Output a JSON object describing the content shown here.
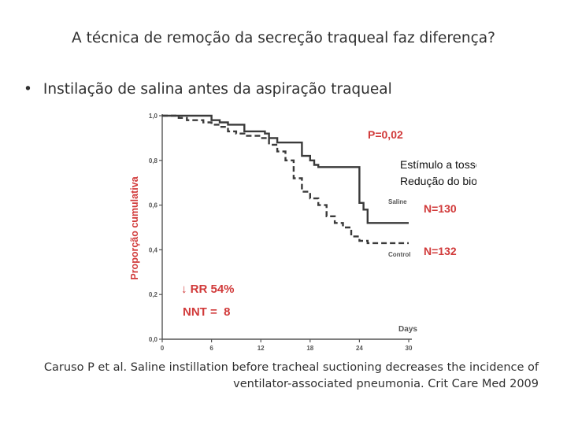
{
  "slide": {
    "title": "A técnica de remoção da secreção traqueal faz diferença?",
    "bullet": "Instilação de salina antes da aspiração traqueal",
    "citation_line1": "Caruso P et al. Saline instillation before tracheal suctioning decreases the incidence of",
    "citation_line2": "ventilator-associated pneumonia. Crit Care Med 2009"
  },
  "chart_data": {
    "type": "line",
    "title": "",
    "xlabel": "Days",
    "ylabel": "Proporção cumulativa",
    "xlim": [
      0,
      30
    ],
    "ylim": [
      0,
      1
    ],
    "x_ticks": [
      "0",
      "6",
      "12",
      "18",
      "24",
      "30"
    ],
    "y_ticks": [
      "0,0",
      "0,2",
      "0,4",
      "0,6",
      "0,8",
      "1,0"
    ],
    "series": [
      {
        "name": "Saline",
        "label": "Saline",
        "n_label": "N=130",
        "style": "solid",
        "x": [
          0,
          4,
          6,
          7,
          8,
          10,
          12,
          12.5,
          13,
          14,
          17,
          18,
          18.5,
          19,
          24,
          24.5,
          25,
          30
        ],
        "y": [
          1.0,
          1.0,
          0.98,
          0.97,
          0.96,
          0.93,
          0.93,
          0.92,
          0.9,
          0.88,
          0.82,
          0.8,
          0.78,
          0.77,
          0.61,
          0.58,
          0.52,
          0.52
        ]
      },
      {
        "name": "Control",
        "label": "Control",
        "n_label": "N=132",
        "style": "dashed",
        "x": [
          0,
          2,
          3,
          5,
          6,
          7,
          8,
          9,
          10,
          12,
          13,
          14,
          15,
          16,
          17,
          18,
          19,
          20,
          21,
          22,
          23,
          24,
          25,
          27,
          30
        ],
        "y": [
          1.0,
          0.99,
          0.98,
          0.97,
          0.96,
          0.95,
          0.93,
          0.92,
          0.91,
          0.9,
          0.87,
          0.84,
          0.8,
          0.72,
          0.66,
          0.63,
          0.6,
          0.55,
          0.52,
          0.5,
          0.46,
          0.44,
          0.43,
          0.43,
          0.43
        ]
      }
    ],
    "annotations": {
      "p_value": "P=0,02",
      "question1": "Estímulo a tosse?",
      "question2": "Redução do biofilme?",
      "rr": "↓ RR 54%",
      "nnt": "NNT =  8"
    },
    "colors": {
      "accent": "#d13a3a",
      "lines": "#3a3a3a",
      "axis": "#555555"
    }
  }
}
